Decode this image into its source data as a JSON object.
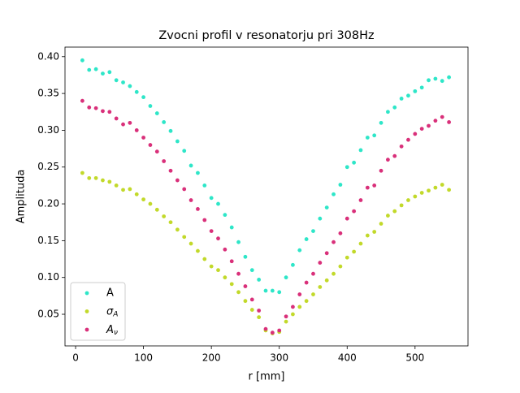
{
  "chart_data": {
    "type": "scatter",
    "title": "Zvocni profil v resonatorju pri 308Hz",
    "xlabel": "r [mm]",
    "ylabel": "Amplituda",
    "x": [
      10,
      20,
      30,
      40,
      50,
      60,
      70,
      80,
      90,
      100,
      110,
      120,
      130,
      140,
      150,
      160,
      170,
      180,
      190,
      200,
      210,
      220,
      230,
      240,
      250,
      260,
      270,
      280,
      290,
      300,
      310,
      320,
      330,
      340,
      350,
      360,
      370,
      380,
      390,
      400,
      410,
      420,
      430,
      440,
      450,
      460,
      470,
      480,
      490,
      500,
      510,
      520,
      530,
      540,
      550
    ],
    "series": [
      {
        "name": "A",
        "color": "#2ee6c8",
        "values": [
          0.395,
          0.382,
          0.383,
          0.377,
          0.379,
          0.368,
          0.365,
          0.36,
          0.352,
          0.345,
          0.333,
          0.323,
          0.311,
          0.299,
          0.285,
          0.272,
          0.252,
          0.242,
          0.225,
          0.208,
          0.2,
          0.185,
          0.168,
          0.148,
          0.128,
          0.11,
          0.097,
          0.082,
          0.082,
          0.08,
          0.1,
          0.117,
          0.137,
          0.152,
          0.163,
          0.18,
          0.195,
          0.213,
          0.226,
          0.25,
          0.256,
          0.273,
          0.29,
          0.293,
          0.31,
          0.325,
          0.331,
          0.343,
          0.347,
          0.353,
          0.358,
          0.368,
          0.37,
          0.367,
          0.372
        ]
      },
      {
        "name": "σA",
        "color": "#c2d92a",
        "values": [
          0.242,
          0.235,
          0.235,
          0.232,
          0.23,
          0.225,
          0.219,
          0.22,
          0.213,
          0.206,
          0.2,
          0.192,
          0.183,
          0.175,
          0.165,
          0.155,
          0.146,
          0.136,
          0.125,
          0.115,
          0.11,
          0.1,
          0.091,
          0.08,
          0.068,
          0.056,
          0.046,
          0.028,
          0.024,
          0.026,
          0.04,
          0.05,
          0.06,
          0.068,
          0.077,
          0.087,
          0.096,
          0.105,
          0.115,
          0.127,
          0.135,
          0.146,
          0.157,
          0.162,
          0.173,
          0.184,
          0.19,
          0.198,
          0.205,
          0.21,
          0.215,
          0.218,
          0.222,
          0.226,
          0.219
        ]
      },
      {
        "name": "Aν",
        "color": "#d9307a",
        "values": [
          0.34,
          0.331,
          0.33,
          0.326,
          0.325,
          0.316,
          0.308,
          0.31,
          0.3,
          0.29,
          0.28,
          0.271,
          0.258,
          0.245,
          0.232,
          0.22,
          0.205,
          0.193,
          0.178,
          0.163,
          0.153,
          0.138,
          0.122,
          0.105,
          0.088,
          0.07,
          0.055,
          0.03,
          0.025,
          0.028,
          0.047,
          0.06,
          0.077,
          0.093,
          0.105,
          0.12,
          0.133,
          0.148,
          0.16,
          0.18,
          0.19,
          0.205,
          0.222,
          0.225,
          0.245,
          0.26,
          0.265,
          0.278,
          0.287,
          0.295,
          0.302,
          0.306,
          0.313,
          0.318,
          0.311
        ]
      }
    ],
    "xlim": [
      -15.6,
      578
    ],
    "ylim": [
      0.007,
      0.413
    ],
    "xticks": [
      0,
      100,
      200,
      300,
      400,
      500
    ],
    "yticks": [
      0.05,
      {
        "value": 0.1,
        "label": "0.10"
      },
      0.15,
      {
        "value": 0.2,
        "label": "0.20"
      },
      0.25,
      {
        "value": 0.3,
        "label": "0.30"
      },
      0.35,
      {
        "value": 0.4,
        "label": "0.40"
      }
    ],
    "legend": "lower left"
  }
}
